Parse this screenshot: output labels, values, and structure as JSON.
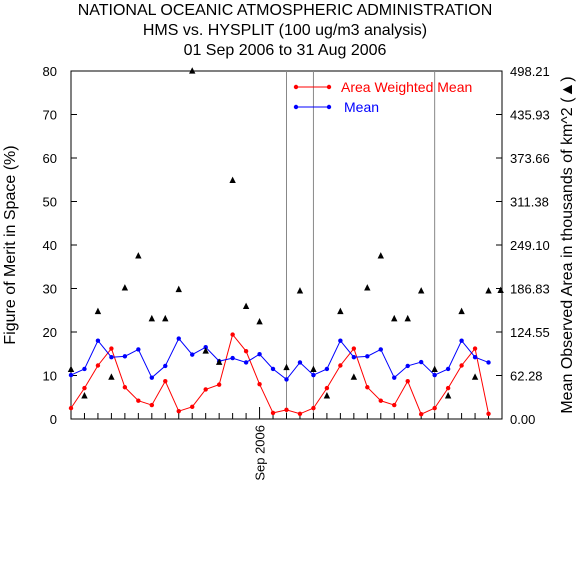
{
  "chart_data": {
    "type": "line",
    "title_lines": [
      "NATIONAL OCEANIC ATMOSPHERIC ADMINISTRATION",
      "HMS vs. HYSPLIT (100 ug/m3 analysis)",
      "01 Sep 2006 to 31 Aug 2006"
    ],
    "ylabel_left": "Figure of Merit in Space (%)",
    "ylabel_right": "Mean Observed Area in thousands of km^2 (▲)",
    "ylim_left": [
      0,
      80
    ],
    "yticks_left": [
      "0",
      "10",
      "20",
      "30",
      "40",
      "50",
      "60",
      "70",
      "80"
    ],
    "yticks_left_values": [
      0,
      10,
      20,
      30,
      40,
      50,
      60,
      70,
      80
    ],
    "yticks_right": [
      "0.00",
      "62.28",
      "124.55",
      "186.83",
      "249.10",
      "311.38",
      "373.66",
      "435.93",
      "498.21"
    ],
    "ylim_right": [
      0,
      498.21
    ],
    "x_tick_label": "Sep 2006",
    "x_tick_label_index": 14,
    "legend_position": "top-right",
    "vertical_lines_at_index": [
      16,
      18,
      27
    ],
    "x_count": 32,
    "series": [
      {
        "name": "Area Weighted Mean",
        "color": "#ff0000",
        "values": [
          2.5,
          7.1,
          12.3,
          16.2,
          7.3,
          4.2,
          3.2,
          8.7,
          1.8,
          2.8,
          6.8,
          7.9,
          19.4,
          15.6,
          8.0,
          1.4,
          2.1,
          1.2,
          2.5,
          7.1,
          12.3,
          16.2,
          7.3,
          4.2,
          3.2,
          8.7,
          1.1,
          2.5,
          7.1,
          12.3,
          16.2,
          1.2
        ]
      },
      {
        "name": "Mean",
        "color": "#0000ff",
        "values": [
          10.1,
          11.5,
          18.0,
          14.2,
          14.4,
          16.0,
          9.5,
          12.2,
          18.5,
          14.8,
          16.5,
          13.3,
          14.0,
          13.0,
          14.9,
          11.5,
          9.1,
          13.0,
          10.1,
          11.5,
          18.0,
          14.2,
          14.4,
          16.0,
          9.5,
          12.2,
          13.1,
          10.1,
          11.5,
          18.0,
          14.2,
          13.0
        ]
      }
    ],
    "triangles": {
      "name": "Mean Observed Area",
      "color": "#000000",
      "values": [
        71.9,
        34.0,
        154.8,
        60.7,
        188.6,
        234.3,
        144.4,
        144.4,
        186.3,
        499.0,
        98.1,
        82.1,
        342.5,
        162.0,
        140.0,
        74.5,
        184.2,
        71.9,
        34.0,
        154.8,
        60.7,
        188.6,
        234.3,
        144.4,
        144.4,
        184.2,
        71.9,
        34.0,
        154.8,
        60.7,
        184.2,
        185.0
      ],
      "index_offset": [
        0,
        1,
        2,
        3,
        4,
        5,
        6,
        7,
        8,
        9,
        10,
        11,
        12,
        13,
        14,
        16,
        17,
        18,
        19,
        20,
        21,
        22,
        23,
        24,
        25,
        26,
        27,
        28,
        29,
        30,
        31,
        31
      ]
    }
  }
}
